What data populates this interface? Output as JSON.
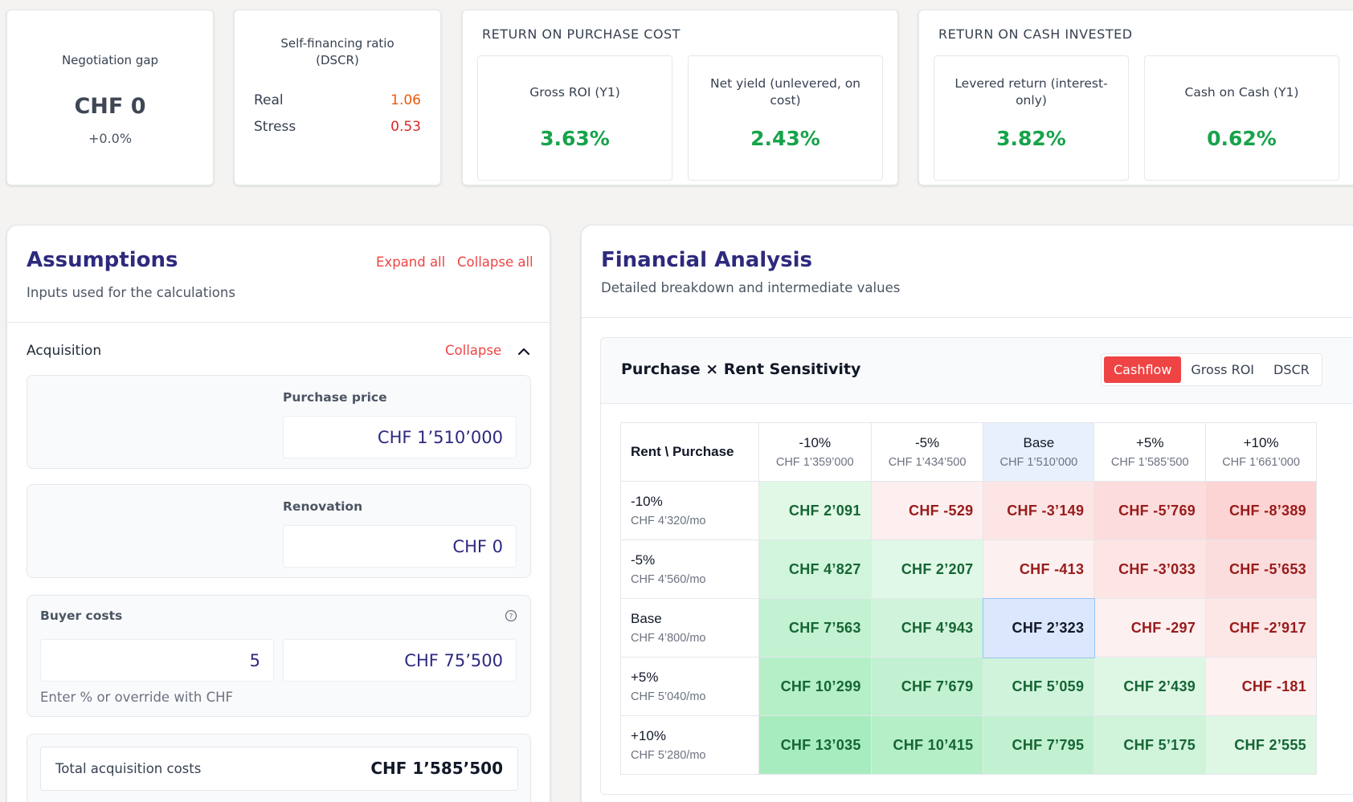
{
  "kpis": {
    "negotiation": {
      "title": "Negotiation gap",
      "value": "CHF 0",
      "change": "+0.0%"
    },
    "dscr": {
      "title_line1": "Self-financing ratio",
      "title_line2": "(DSCR)",
      "rows": [
        {
          "label": "Real",
          "value": "1.06",
          "color": "#ea580c"
        },
        {
          "label": "Stress",
          "value": "0.53",
          "color": "#dc2626"
        }
      ]
    },
    "purchase_cost": {
      "heading": "RETURN ON PURCHASE COST",
      "metrics": [
        {
          "title": "Gross ROI (Y1)",
          "value": "3.63%"
        },
        {
          "title": "Net yield (unlevered, on cost)",
          "value": "2.43%"
        }
      ]
    },
    "cash_invested": {
      "heading": "RETURN ON CASH INVESTED",
      "metrics": [
        {
          "title": "Levered return (interest-only)",
          "value": "3.82%"
        },
        {
          "title": "Cash on Cash (Y1)",
          "value": "0.62%"
        }
      ]
    }
  },
  "assumptions": {
    "title": "Assumptions",
    "subtitle": "Inputs used for the calculations",
    "expand_all": "Expand all",
    "collapse_all": "Collapse all",
    "acquisition": {
      "label": "Acquisition",
      "collapse": "Collapse",
      "purchase_price": {
        "label": "Purchase price",
        "value": "CHF 1’510’000"
      },
      "renovation": {
        "label": "Renovation",
        "value": "CHF 0"
      },
      "buyer_costs": {
        "label": "Buyer costs",
        "percent": "5",
        "amount": "CHF 75’500",
        "hint": "Enter % or override with CHF"
      },
      "total": {
        "label": "Total acquisition costs",
        "value": "CHF 1’585’500"
      }
    }
  },
  "analysis": {
    "title": "Financial Analysis",
    "subtitle": "Detailed breakdown and intermediate values",
    "sensitivity": {
      "title": "Purchase × Rent Sensitivity",
      "tabs": [
        "Cashflow",
        "Gross ROI",
        "DSCR"
      ],
      "active_tab": "Cashflow",
      "corner": "Rent \\ Purchase",
      "columns": [
        {
          "label": "-10%",
          "sub": "CHF 1’359’000"
        },
        {
          "label": "-5%",
          "sub": "CHF 1’434’500"
        },
        {
          "label": "Base",
          "sub": "CHF 1’510’000"
        },
        {
          "label": "+5%",
          "sub": "CHF 1’585’500"
        },
        {
          "label": "+10%",
          "sub": "CHF 1’661’000"
        }
      ],
      "rows": [
        {
          "label": "-10%",
          "sub": "CHF 4’320/mo",
          "cells": [
            "CHF 2’091",
            "CHF -529",
            "CHF -3’149",
            "CHF -5’769",
            "CHF -8’389"
          ]
        },
        {
          "label": "-5%",
          "sub": "CHF 4’560/mo",
          "cells": [
            "CHF 4’827",
            "CHF 2’207",
            "CHF -413",
            "CHF -3’033",
            "CHF -5’653"
          ]
        },
        {
          "label": "Base",
          "sub": "CHF 4’800/mo",
          "cells": [
            "CHF 7’563",
            "CHF 4’943",
            "CHF 2’323",
            "CHF -297",
            "CHF -2’917"
          ]
        },
        {
          "label": "+5%",
          "sub": "CHF 5’040/mo",
          "cells": [
            "CHF 10’299",
            "CHF 7’679",
            "CHF 5’059",
            "CHF 2’439",
            "CHF -181"
          ]
        },
        {
          "label": "+10%",
          "sub": "CHF 5’280/mo",
          "cells": [
            "CHF 13’035",
            "CHF 10’415",
            "CHF 7’795",
            "CHF 5’175",
            "CHF 2’555"
          ]
        }
      ],
      "cell_values": [
        [
          2091,
          -529,
          -3149,
          -5769,
          -8389
        ],
        [
          4827,
          2207,
          -413,
          -3033,
          -5653
        ],
        [
          7563,
          4943,
          2323,
          -297,
          -2917
        ],
        [
          10299,
          7679,
          5059,
          2439,
          -181
        ],
        [
          13035,
          10415,
          7795,
          5175,
          2555
        ]
      ]
    }
  }
}
